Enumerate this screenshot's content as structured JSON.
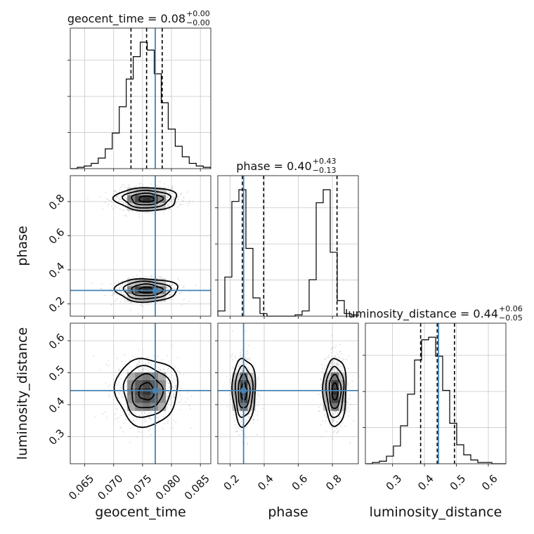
{
  "chart_data": {
    "type": "corner",
    "parameters": [
      "geocent_time",
      "phase",
      "luminosity_distance"
    ],
    "truths": {
      "geocent_time": 0.0772,
      "phase": 0.279,
      "luminosity_distance": 0.444
    },
    "ranges": {
      "geocent_time": [
        0.0625,
        0.0868
      ],
      "phase": [
        0.128,
        0.952
      ],
      "luminosity_distance": [
        0.215,
        0.655
      ]
    },
    "ticks": {
      "geocent_time": [
        "0.065",
        "0.070",
        "0.075",
        "0.080",
        "0.085"
      ],
      "phase": [
        "0.2",
        "0.4",
        "0.6",
        "0.8"
      ],
      "luminosity_distance": [
        "0.3",
        "0.4",
        "0.5",
        "0.6"
      ]
    },
    "titles": [
      {
        "param": "geocent_time",
        "label": "geocent_time",
        "median": "0.08",
        "plus": "+0.00",
        "minus": "−0.00"
      },
      {
        "param": "phase",
        "label": "phase",
        "median": "0.40",
        "plus": "+0.43",
        "minus": "−0.13"
      },
      {
        "param": "luminosity_distance",
        "label": "luminosity_distance",
        "median": "0.44",
        "plus": "+0.06",
        "minus": "−0.05"
      }
    ],
    "quantiles": {
      "geocent_time": [
        0.073,
        0.0757,
        0.0784
      ],
      "phase": [
        0.272,
        0.397,
        0.827
      ],
      "luminosity_distance": [
        0.388,
        0.44,
        0.494
      ]
    },
    "histograms": {
      "geocent_time": {
        "bin_start": 0.0625,
        "bin_width": 0.00121,
        "counts": [
          0,
          1,
          2,
          4,
          8,
          15,
          27,
          47,
          68,
          85,
          96,
          90,
          72,
          50,
          30,
          17,
          9,
          4,
          2,
          1
        ]
      },
      "phase": {
        "bin_start": 0.128,
        "bin_width": 0.0412,
        "counts": [
          4,
          30,
          88,
          97,
          52,
          14,
          2,
          0,
          0,
          0,
          0,
          1,
          4,
          28,
          87,
          97,
          49,
          12,
          2,
          1
        ]
      },
      "luminosity_distance": {
        "bin_start": 0.215,
        "bin_width": 0.022,
        "counts": [
          0,
          1,
          2,
          6,
          14,
          30,
          55,
          82,
          98,
          100,
          85,
          58,
          32,
          15,
          7,
          3,
          1,
          1,
          0,
          0
        ]
      }
    },
    "grid": true
  }
}
